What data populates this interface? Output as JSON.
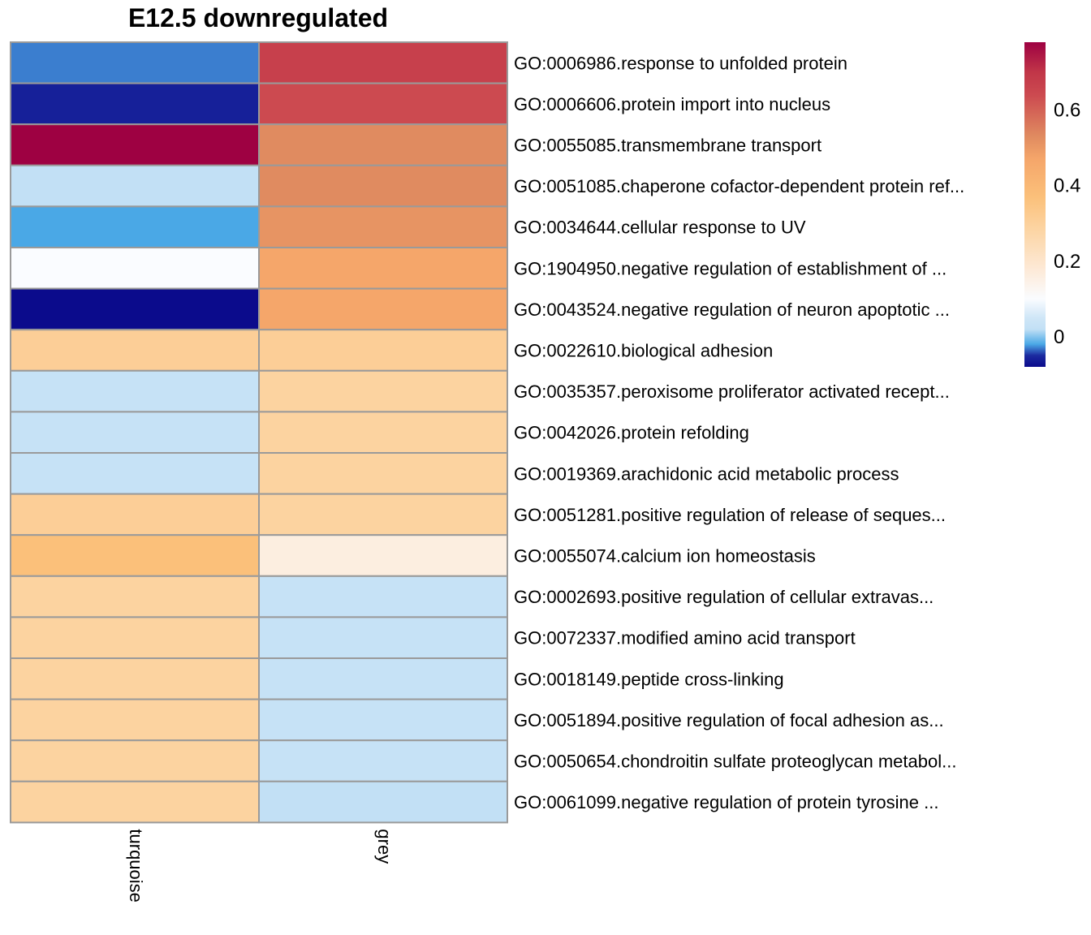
{
  "chart_data": {
    "type": "heatmap",
    "title": "E12.5 downregulated",
    "columns": [
      "turquoise",
      "grey"
    ],
    "rows": [
      "GO:0006986.response to unfolded protein",
      "GO:0006606.protein import into nucleus",
      "GO:0055085.transmembrane transport",
      "GO:0051085.chaperone cofactor-dependent protein ref...",
      "GO:0034644.cellular response to UV",
      "GO:1904950.negative regulation of establishment of ...",
      "GO:0043524.negative regulation of neuron apoptotic ...",
      "GO:0022610.biological adhesion",
      "GO:0035357.peroxisome proliferator activated recept...",
      "GO:0042026.protein refolding",
      "GO:0019369.arachidonic acid metabolic process",
      "GO:0051281.positive regulation of release of seques...",
      "GO:0055074.calcium ion homeostasis",
      "GO:0002693.positive regulation of cellular extravas...",
      "GO:0072337.modified amino acid transport",
      "GO:0018149.peptide cross-linking",
      "GO:0051894.positive regulation of focal adhesion as...",
      "GO:0050654.chondroitin sulfate proteoglycan metabol...",
      "GO:0061099.negative regulation of protein tyrosine ..."
    ],
    "values": [
      [
        -0.03,
        0.67
      ],
      [
        -0.06,
        0.64
      ],
      [
        0.78,
        0.53
      ],
      [
        0.02,
        0.53
      ],
      [
        -0.02,
        0.51
      ],
      [
        0.1,
        0.47
      ],
      [
        -0.08,
        0.47
      ],
      [
        0.31,
        0.31
      ],
      [
        0.03,
        0.29
      ],
      [
        0.03,
        0.29
      ],
      [
        0.03,
        0.29
      ],
      [
        0.31,
        0.29
      ],
      [
        0.37,
        0.16
      ],
      [
        0.29,
        0.03
      ],
      [
        0.29,
        0.03
      ],
      [
        0.29,
        0.03
      ],
      [
        0.29,
        0.03
      ],
      [
        0.29,
        0.03
      ],
      [
        0.29,
        0.02
      ]
    ],
    "legend": {
      "ticks": [
        0,
        0.2,
        0.4,
        0.6
      ],
      "tick_labels": [
        "0",
        "0.2",
        "0.4",
        "0.6"
      ],
      "range": [
        -0.08,
        0.78
      ],
      "position": "top-right"
    },
    "colors": {
      "low": "#0b0b8c",
      "mid_blue": "#4aa8e6",
      "light_blue": "#cfe6f7",
      "white": "#fafcff",
      "light_orange": "#fcd3a0",
      "orange": "#f5a66a",
      "red": "#cc4a50",
      "high": "#9e0142",
      "cell_border": "#9a9a9a"
    }
  }
}
